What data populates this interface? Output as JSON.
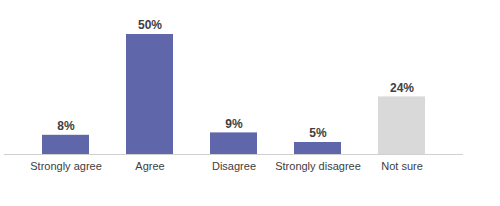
{
  "chart_data": {
    "type": "bar",
    "categories": [
      "Strongly agree",
      "Agree",
      "Disagree",
      "Strongly disagree",
      "Not sure"
    ],
    "values": [
      8,
      50,
      9,
      5,
      24
    ],
    "value_labels": [
      "8%",
      "50%",
      "9%",
      "5%",
      "24%"
    ],
    "colors": [
      "#5f67aa",
      "#5f67aa",
      "#5f67aa",
      "#5f67aa",
      "#d9d9d9"
    ],
    "ylim": [
      0,
      50
    ],
    "data_labels": true,
    "tick_labels": "x",
    "grid": false
  }
}
